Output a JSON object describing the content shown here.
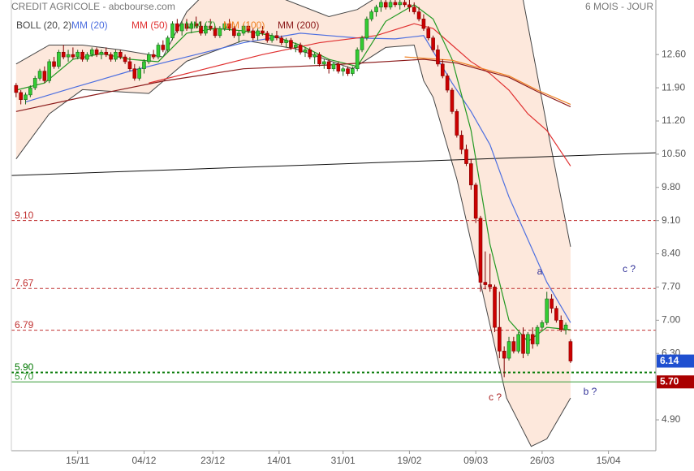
{
  "chart_data": {
    "type": "candlestick",
    "title": "CREDIT AGRICOLE - abcbourse.com",
    "subtitle": "6 MOIS - JOUR",
    "up_color": "#33cc33",
    "up_edge": "#1a661a",
    "down_color": "#cc0000",
    "down_edge": "#800000",
    "ohlc": [
      [
        11.95,
        12.0,
        11.7,
        11.8
      ],
      [
        11.8,
        11.85,
        11.55,
        11.65
      ],
      [
        11.65,
        11.8,
        11.55,
        11.75
      ],
      [
        11.75,
        11.95,
        11.7,
        11.9
      ],
      [
        11.9,
        12.15,
        11.85,
        12.1
      ],
      [
        12.1,
        12.3,
        12.05,
        12.25
      ],
      [
        12.25,
        12.35,
        12.0,
        12.05
      ],
      [
        12.05,
        12.5,
        12.0,
        12.45
      ],
      [
        12.45,
        12.55,
        12.3,
        12.35
      ],
      [
        12.35,
        12.7,
        12.3,
        12.65
      ],
      [
        12.65,
        12.8,
        12.5,
        12.55
      ],
      [
        12.55,
        12.7,
        12.45,
        12.6
      ],
      [
        12.6,
        12.75,
        12.5,
        12.55
      ],
      [
        12.55,
        12.7,
        12.5,
        12.65
      ],
      [
        12.65,
        12.7,
        12.45,
        12.5
      ],
      [
        12.5,
        12.65,
        12.45,
        12.6
      ],
      [
        12.6,
        12.75,
        12.55,
        12.7
      ],
      [
        12.7,
        12.75,
        12.55,
        12.6
      ],
      [
        12.6,
        12.7,
        12.5,
        12.65
      ],
      [
        12.65,
        12.75,
        12.55,
        12.6
      ],
      [
        12.6,
        12.65,
        12.45,
        12.5
      ],
      [
        12.5,
        12.7,
        12.45,
        12.65
      ],
      [
        12.65,
        12.7,
        12.5,
        12.55
      ],
      [
        12.55,
        12.6,
        12.4,
        12.45
      ],
      [
        12.45,
        12.55,
        12.25,
        12.3
      ],
      [
        12.3,
        12.4,
        12.05,
        12.1
      ],
      [
        12.1,
        12.35,
        12.05,
        12.3
      ],
      [
        12.3,
        12.5,
        12.2,
        12.45
      ],
      [
        12.45,
        12.65,
        12.4,
        12.6
      ],
      [
        12.6,
        12.7,
        12.5,
        12.55
      ],
      [
        12.55,
        12.85,
        12.5,
        12.8
      ],
      [
        12.8,
        12.9,
        12.65,
        12.7
      ],
      [
        12.7,
        13.0,
        12.65,
        12.95
      ],
      [
        12.95,
        13.3,
        12.9,
        13.25
      ],
      [
        13.25,
        13.35,
        13.05,
        13.1
      ],
      [
        13.1,
        13.3,
        13.0,
        13.25
      ],
      [
        13.25,
        13.35,
        13.1,
        13.15
      ],
      [
        13.15,
        13.3,
        13.05,
        13.25
      ],
      [
        13.25,
        13.4,
        13.15,
        13.2
      ],
      [
        13.2,
        13.3,
        13.0,
        13.05
      ],
      [
        13.05,
        13.25,
        13.0,
        13.2
      ],
      [
        13.2,
        13.35,
        13.1,
        13.15
      ],
      [
        13.15,
        13.2,
        12.95,
        13.0
      ],
      [
        13.0,
        13.2,
        12.95,
        13.15
      ],
      [
        13.15,
        13.3,
        13.1,
        13.25
      ],
      [
        13.25,
        13.35,
        13.1,
        13.15
      ],
      [
        13.15,
        13.2,
        12.95,
        13.0
      ],
      [
        13.0,
        13.1,
        12.85,
        13.05
      ],
      [
        13.05,
        13.25,
        13.0,
        13.2
      ],
      [
        13.2,
        13.3,
        13.05,
        13.1
      ],
      [
        13.1,
        13.15,
        12.9,
        12.95
      ],
      [
        13.0,
        13.15,
        12.9,
        13.1
      ],
      [
        13.1,
        13.2,
        13.0,
        13.05
      ],
      [
        13.05,
        13.1,
        12.85,
        12.9
      ],
      [
        12.9,
        13.05,
        12.85,
        13.0
      ],
      [
        13.0,
        13.1,
        12.9,
        12.95
      ],
      [
        12.95,
        13.0,
        12.8,
        12.85
      ],
      [
        12.85,
        12.95,
        12.75,
        12.9
      ],
      [
        12.9,
        12.95,
        12.7,
        12.75
      ],
      [
        12.75,
        12.85,
        12.65,
        12.8
      ],
      [
        12.8,
        12.85,
        12.6,
        12.65
      ],
      [
        12.65,
        12.75,
        12.55,
        12.7
      ],
      [
        12.7,
        12.75,
        12.5,
        12.55
      ],
      [
        12.55,
        12.65,
        12.4,
        12.6
      ],
      [
        12.6,
        12.65,
        12.35,
        12.4
      ],
      [
        12.4,
        12.5,
        12.3,
        12.45
      ],
      [
        12.45,
        12.5,
        12.2,
        12.3
      ],
      [
        12.3,
        12.45,
        12.25,
        12.4
      ],
      [
        12.4,
        12.45,
        12.2,
        12.25
      ],
      [
        12.25,
        12.35,
        12.15,
        12.3
      ],
      [
        12.3,
        12.35,
        12.15,
        12.2
      ],
      [
        12.2,
        12.35,
        12.15,
        12.3
      ],
      [
        12.3,
        12.75,
        12.25,
        12.7
      ],
      [
        12.7,
        13.0,
        12.65,
        12.95
      ],
      [
        12.95,
        13.4,
        12.9,
        13.35
      ],
      [
        13.35,
        13.55,
        13.3,
        13.5
      ],
      [
        13.5,
        13.65,
        13.4,
        13.6
      ],
      [
        13.6,
        13.75,
        13.5,
        13.7
      ],
      [
        13.7,
        13.75,
        13.55,
        13.6
      ],
      [
        13.6,
        13.75,
        13.55,
        13.7
      ],
      [
        13.7,
        13.75,
        13.6,
        13.65
      ],
      [
        13.65,
        13.75,
        13.55,
        13.7
      ],
      [
        13.7,
        13.75,
        13.6,
        13.65
      ],
      [
        13.65,
        13.75,
        13.5,
        13.6
      ],
      [
        13.6,
        13.7,
        13.45,
        13.5
      ],
      [
        13.5,
        13.6,
        13.3,
        13.35
      ],
      [
        13.35,
        13.45,
        13.1,
        13.15
      ],
      [
        13.15,
        13.2,
        12.9,
        12.95
      ],
      [
        12.95,
        13.0,
        12.65,
        12.7
      ],
      [
        12.7,
        12.8,
        12.35,
        12.4
      ],
      [
        12.4,
        12.5,
        12.1,
        12.15
      ],
      [
        12.15,
        12.2,
        11.8,
        11.85
      ],
      [
        11.85,
        11.9,
        11.35,
        11.4
      ],
      [
        11.4,
        11.45,
        10.85,
        10.9
      ],
      [
        10.9,
        11.0,
        10.5,
        10.6
      ],
      [
        10.6,
        10.7,
        10.25,
        10.3
      ],
      [
        10.3,
        10.4,
        9.75,
        9.85
      ],
      [
        9.85,
        9.9,
        9.05,
        9.15
      ],
      [
        9.15,
        9.2,
        7.6,
        7.8
      ],
      [
        7.8,
        8.45,
        7.65,
        7.75
      ],
      [
        7.75,
        8.4,
        7.6,
        7.7
      ],
      [
        7.7,
        7.75,
        6.75,
        6.85
      ],
      [
        6.85,
        7.6,
        6.2,
        6.35
      ],
      [
        6.35,
        6.45,
        5.8,
        6.2
      ],
      [
        6.2,
        6.65,
        6.15,
        6.55
      ],
      [
        6.55,
        6.65,
        6.3,
        6.35
      ],
      [
        6.35,
        6.75,
        6.3,
        6.7
      ],
      [
        6.7,
        6.85,
        6.2,
        6.3
      ],
      [
        6.3,
        6.75,
        6.25,
        6.7
      ],
      [
        6.7,
        6.85,
        6.4,
        6.5
      ],
      [
        6.5,
        6.9,
        6.45,
        6.85
      ],
      [
        6.85,
        7.0,
        6.8,
        6.95
      ],
      [
        6.95,
        7.6,
        6.9,
        7.45
      ],
      [
        7.45,
        7.55,
        7.15,
        7.25
      ],
      [
        7.25,
        7.3,
        6.95,
        7.0
      ],
      [
        7.0,
        7.1,
        6.75,
        6.8
      ],
      [
        6.8,
        6.95,
        6.7,
        6.9
      ],
      [
        6.55,
        6.6,
        6.1,
        6.14
      ]
    ],
    "bollinger": {
      "name": "BOLL (20, 2)",
      "color": "#444444",
      "fill": "#fbd9c4",
      "upper": {
        "x": [
          0,
          7,
          14,
          22,
          31,
          36,
          40,
          48,
          66,
          72,
          76,
          80,
          90,
          96,
          104,
          107,
          112,
          117
        ],
        "values": [
          12.4,
          12.8,
          12.8,
          12.7,
          12.55,
          13.5,
          13.9,
          14.1,
          13.4,
          13.55,
          13.8,
          14.2,
          14.8,
          15.2,
          15.0,
          13.75,
          11.1,
          8.55
        ]
      },
      "lower": {
        "x": [
          0,
          7,
          14,
          28,
          36,
          48,
          59,
          71,
          78,
          84,
          86,
          88,
          93,
          100,
          103.5,
          108.7,
          112,
          117
        ],
        "values": [
          10.4,
          11.35,
          11.86,
          11.78,
          12.46,
          12.9,
          12.72,
          12.3,
          12.75,
          12.8,
          12.05,
          11.7,
          9.98,
          6.9,
          5.36,
          4.34,
          4.5,
          5.36
        ]
      }
    },
    "series": [
      {
        "name": "MM (20)",
        "color": "#4d6fe0",
        "x": [
          2,
          12,
          24,
          36,
          48,
          60,
          72,
          80,
          86,
          92,
          96,
          100,
          104,
          108,
          112,
          117
        ],
        "values": [
          11.6,
          11.9,
          12.25,
          12.55,
          12.85,
          13.05,
          12.95,
          12.93,
          13.0,
          12.0,
          11.4,
          10.7,
          9.6,
          8.7,
          7.8,
          6.95
        ]
      },
      {
        "name": "MM (50)",
        "color": "#e03030",
        "x": [
          28,
          40,
          52,
          64,
          76,
          84,
          88,
          92,
          96,
          100,
          104,
          108,
          112,
          117
        ],
        "values": [
          12.0,
          12.3,
          12.6,
          12.85,
          13.0,
          13.25,
          13.15,
          12.8,
          12.45,
          12.2,
          11.85,
          11.35,
          11.0,
          10.25
        ]
      },
      {
        "name": "MM (7)",
        "color": "#229922",
        "x": [
          0,
          6,
          12,
          18,
          24,
          30,
          36,
          42,
          48,
          54,
          60,
          66,
          72,
          78,
          84,
          88,
          92,
          96,
          100,
          104,
          108,
          112,
          117
        ],
        "values": [
          11.85,
          12.0,
          12.5,
          12.62,
          12.5,
          12.45,
          13.05,
          13.15,
          13.1,
          13.0,
          12.8,
          12.5,
          12.35,
          13.3,
          13.65,
          13.35,
          12.5,
          11.0,
          8.6,
          7.0,
          6.55,
          6.85,
          6.8
        ]
      },
      {
        "name": "MM (100)",
        "color": "#f08020",
        "x": [
          82,
          92,
          104,
          110,
          117
        ],
        "values": [
          12.55,
          12.48,
          12.15,
          11.85,
          11.55
        ]
      },
      {
        "name": "MM (200)",
        "color": "#8b1a1a",
        "x": [
          0,
          14,
          31,
          48,
          66,
          86,
          93,
          104,
          110,
          117
        ],
        "values": [
          11.4,
          11.7,
          12.04,
          12.3,
          12.38,
          12.5,
          12.42,
          12.12,
          11.82,
          11.5
        ]
      }
    ],
    "trendline": {
      "color": "#111111",
      "x": [
        -1,
        135
      ],
      "values": [
        10.05,
        10.53
      ]
    },
    "levels": [
      {
        "value": 9.1,
        "label": "9.10",
        "color": "#c03030",
        "style": "dashed"
      },
      {
        "value": 7.67,
        "label": "7.67",
        "color": "#c03030",
        "style": "dashed"
      },
      {
        "value": 6.79,
        "label": "6.79",
        "color": "#c03030",
        "style": "dashed"
      },
      {
        "value": 5.9,
        "label": "5.90",
        "color": "#007700",
        "style": "dotted"
      },
      {
        "value": 5.7,
        "label": "5.70",
        "color": "#339933",
        "style": "solid"
      }
    ],
    "price_tags": [
      {
        "value": 6.14,
        "label": "6.14",
        "color": "#1f4fd0"
      },
      {
        "value": 5.7,
        "label": "5.70",
        "color": "#aa0000"
      }
    ],
    "annotations": [
      {
        "text": "a",
        "color": "#333399"
      },
      {
        "text": "c ?",
        "color": "#333399"
      },
      {
        "text": "b ?",
        "color": "#333399"
      },
      {
        "text": "c ?",
        "color": "#aa2222"
      }
    ],
    "xlim": [
      -1,
      135
    ],
    "xticks": [
      {
        "value": 13,
        "label": "15/11"
      },
      {
        "value": 27,
        "label": "04/12"
      },
      {
        "value": 41.5,
        "label": "23/12"
      },
      {
        "value": 55.5,
        "label": "14/01"
      },
      {
        "value": 69,
        "label": "31/01"
      },
      {
        "value": 83,
        "label": "19/02"
      },
      {
        "value": 97,
        "label": "09/03"
      },
      {
        "value": 111,
        "label": "26/03"
      },
      {
        "value": 125,
        "label": "15/04"
      }
    ],
    "ylim": [
      4.25,
      13.75
    ],
    "yticks": [
      {
        "value": 12.6,
        "label": "12.60"
      },
      {
        "value": 11.9,
        "label": "11.90"
      },
      {
        "value": 11.2,
        "label": "11.20"
      },
      {
        "value": 10.5,
        "label": "10.50"
      },
      {
        "value": 9.8,
        "label": "9.80"
      },
      {
        "value": 9.1,
        "label": "9.10"
      },
      {
        "value": 8.4,
        "label": "8.40"
      },
      {
        "value": 7.7,
        "label": "7.70"
      },
      {
        "value": 7.0,
        "label": "7.00"
      },
      {
        "value": 6.3,
        "label": "6.30"
      },
      {
        "value": 4.9,
        "label": "4.90"
      }
    ]
  }
}
